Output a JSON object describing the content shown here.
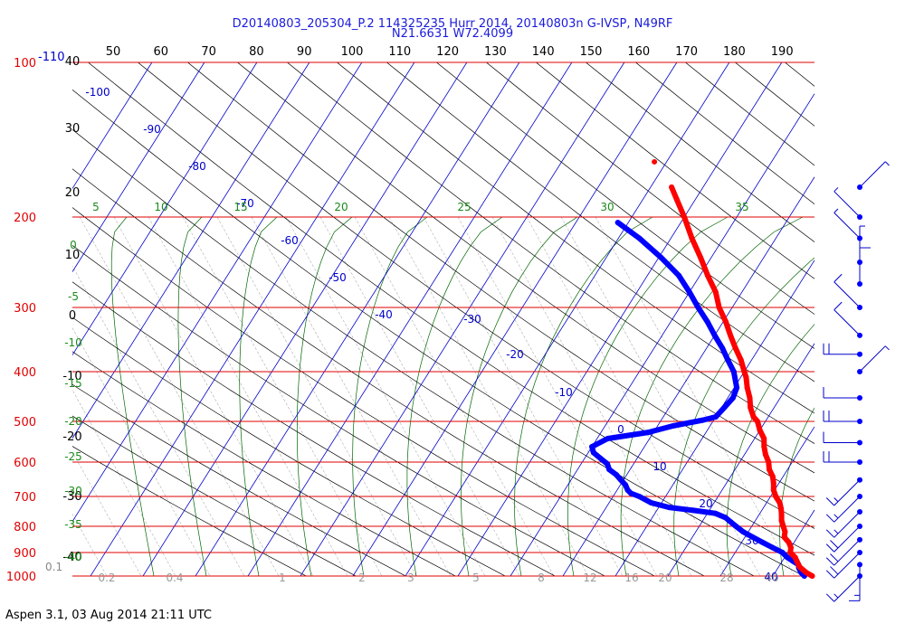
{
  "title": {
    "line1": "D20140803_205304_P.2 114325235 Hurr 2014, 20140803n G-IVSP, N49RF",
    "line2": "N21.6631 W72.4099"
  },
  "footer": "Aspen 3.1, 03 Aug 2014  21:11 UTC",
  "colors": {
    "temperature": "#ff0000",
    "dewpoint": "#0000ff",
    "isobar": "#e00000",
    "isotherm": "#0000cc",
    "dry_adiabat": "#000000",
    "moist_adiabat": "#006600",
    "mixing_ratio": "#009900",
    "wind_barb": "#0000ff"
  },
  "chart_data": {
    "type": "skew-t",
    "pressure_axis": {
      "unit": "hPa",
      "scale": "log",
      "range": [
        1000,
        100
      ],
      "tick_labels": [
        "100",
        "200",
        "300",
        "400",
        "500",
        "600",
        "700",
        "800",
        "900",
        "1000"
      ],
      "extra_labels": [
        "-110",
        "0.1"
      ]
    },
    "top_axis_labels": [
      "50",
      "60",
      "70",
      "80",
      "90",
      "100",
      "110",
      "120",
      "130",
      "140",
      "150",
      "160",
      "170",
      "180",
      "190"
    ],
    "height_labels": [
      "40",
      "30",
      "20",
      "10",
      "0",
      "-10",
      "-20",
      "-30",
      "-40"
    ],
    "isotherm_labels": [
      "-100",
      "-90",
      "-80",
      "-70",
      "-60",
      "-50",
      "-40",
      "-30",
      "-20",
      "-10",
      "0",
      "10",
      "20",
      "30",
      "40"
    ],
    "moist_adiabat_labels": [
      "5",
      "10",
      "15",
      "20",
      "25",
      "30",
      "35"
    ],
    "left_green_labels": [
      "0",
      "-5",
      "-10",
      "-15",
      "-20",
      "-25",
      "-30",
      "-35",
      "-40"
    ],
    "mixing_ratio_labels": [
      "0.2",
      "0.4",
      "1",
      "2",
      "3",
      "5",
      "8",
      "12",
      "16",
      "20",
      "28",
      "40"
    ],
    "dry_adiabat_labels": [],
    "temperature": {
      "unit": "°C",
      "points": [
        [
          1000,
          27.5
        ],
        [
          985,
          26
        ],
        [
          960,
          24
        ],
        [
          940,
          23
        ],
        [
          920,
          22
        ],
        [
          900,
          20.5
        ],
        [
          880,
          20
        ],
        [
          860,
          19
        ],
        [
          840,
          17.5
        ],
        [
          820,
          17
        ],
        [
          800,
          16
        ],
        [
          780,
          15
        ],
        [
          760,
          14.3
        ],
        [
          740,
          13.5
        ],
        [
          720,
          12.5
        ],
        [
          700,
          11
        ],
        [
          680,
          9.8
        ],
        [
          660,
          9
        ],
        [
          640,
          8
        ],
        [
          620,
          6.5
        ],
        [
          600,
          5.5
        ],
        [
          580,
          4
        ],
        [
          560,
          2.8
        ],
        [
          540,
          1.8
        ],
        [
          520,
          0
        ],
        [
          500,
          -1.5
        ],
        [
          490,
          -2.8
        ],
        [
          470,
          -4.5
        ],
        [
          450,
          -5.8
        ],
        [
          430,
          -7.5
        ],
        [
          410,
          -9
        ],
        [
          400,
          -10
        ],
        [
          380,
          -12
        ],
        [
          360,
          -14.5
        ],
        [
          340,
          -17
        ],
        [
          320,
          -19.5
        ],
        [
          300,
          -22.5
        ],
        [
          280,
          -25
        ],
        [
          260,
          -28.5
        ],
        [
          240,
          -32
        ],
        [
          220,
          -36
        ],
        [
          200,
          -40
        ],
        [
          185,
          -43.5
        ],
        [
          175,
          -46
        ]
      ]
    },
    "dewpoint": {
      "unit": "°C",
      "points": [
        [
          1000,
          26
        ],
        [
          985,
          25
        ],
        [
          965,
          24
        ],
        [
          950,
          23.5
        ],
        [
          935,
          22
        ],
        [
          920,
          20.5
        ],
        [
          900,
          19
        ],
        [
          880,
          16.5
        ],
        [
          860,
          14
        ],
        [
          840,
          11.5
        ],
        [
          820,
          9
        ],
        [
          800,
          7
        ],
        [
          785,
          5.5
        ],
        [
          770,
          4
        ],
        [
          755,
          1.5
        ],
        [
          745,
          -3
        ],
        [
          735,
          -8
        ],
        [
          720,
          -12
        ],
        [
          700,
          -15
        ],
        [
          690,
          -17
        ],
        [
          680,
          -18
        ],
        [
          665,
          -19
        ],
        [
          650,
          -20.5
        ],
        [
          635,
          -22
        ],
        [
          620,
          -24
        ],
        [
          605,
          -25
        ],
        [
          590,
          -27
        ],
        [
          575,
          -29
        ],
        [
          560,
          -30
        ],
        [
          540,
          -28
        ],
        [
          525,
          -21
        ],
        [
          510,
          -17
        ],
        [
          497,
          -12
        ],
        [
          490,
          -10
        ],
        [
          470,
          -9.5
        ],
        [
          450,
          -9
        ],
        [
          430,
          -9.5
        ],
        [
          400,
          -12
        ],
        [
          380,
          -14.5
        ],
        [
          360,
          -17
        ],
        [
          340,
          -20
        ],
        [
          320,
          -23
        ],
        [
          300,
          -26.5
        ],
        [
          280,
          -30
        ],
        [
          260,
          -34
        ],
        [
          240,
          -39.5
        ],
        [
          220,
          -46
        ],
        [
          205,
          -52
        ]
      ]
    },
    "wind_barbs": {
      "unit": "kt",
      "levels": [
        {
          "p": 1000,
          "dir": "SW",
          "speed": 15
        },
        {
          "p": 950,
          "dir": "S",
          "speed": 15
        },
        {
          "p": 900,
          "dir": "SW",
          "speed": 20
        },
        {
          "p": 850,
          "dir": "SW",
          "speed": 20
        },
        {
          "p": 800,
          "dir": "SW",
          "speed": 20
        },
        {
          "p": 750,
          "dir": "SW",
          "speed": 15
        },
        {
          "p": 700,
          "dir": "SW",
          "speed": 15
        },
        {
          "p": 650,
          "dir": "SW",
          "speed": 15
        },
        {
          "p": 600,
          "dir": "W",
          "speed": 20
        },
        {
          "p": 550,
          "dir": "W",
          "speed": 10
        },
        {
          "p": 500,
          "dir": "W",
          "speed": 20
        },
        {
          "p": 450,
          "dir": "W",
          "speed": 10
        },
        {
          "p": 400,
          "dir": "NE",
          "speed": 5
        },
        {
          "p": 370,
          "dir": "W",
          "speed": 20
        },
        {
          "p": 340,
          "dir": "NW",
          "speed": 10
        },
        {
          "p": 300,
          "dir": "NW",
          "speed": 10
        },
        {
          "p": 270,
          "dir": "N",
          "speed": 10
        },
        {
          "p": 245,
          "dir": "N",
          "speed": 5
        },
        {
          "p": 220,
          "dir": "NW",
          "speed": 5
        },
        {
          "p": 200,
          "dir": "NW",
          "speed": 5
        },
        {
          "p": 175,
          "dir": "NE",
          "speed": 5
        }
      ]
    }
  }
}
